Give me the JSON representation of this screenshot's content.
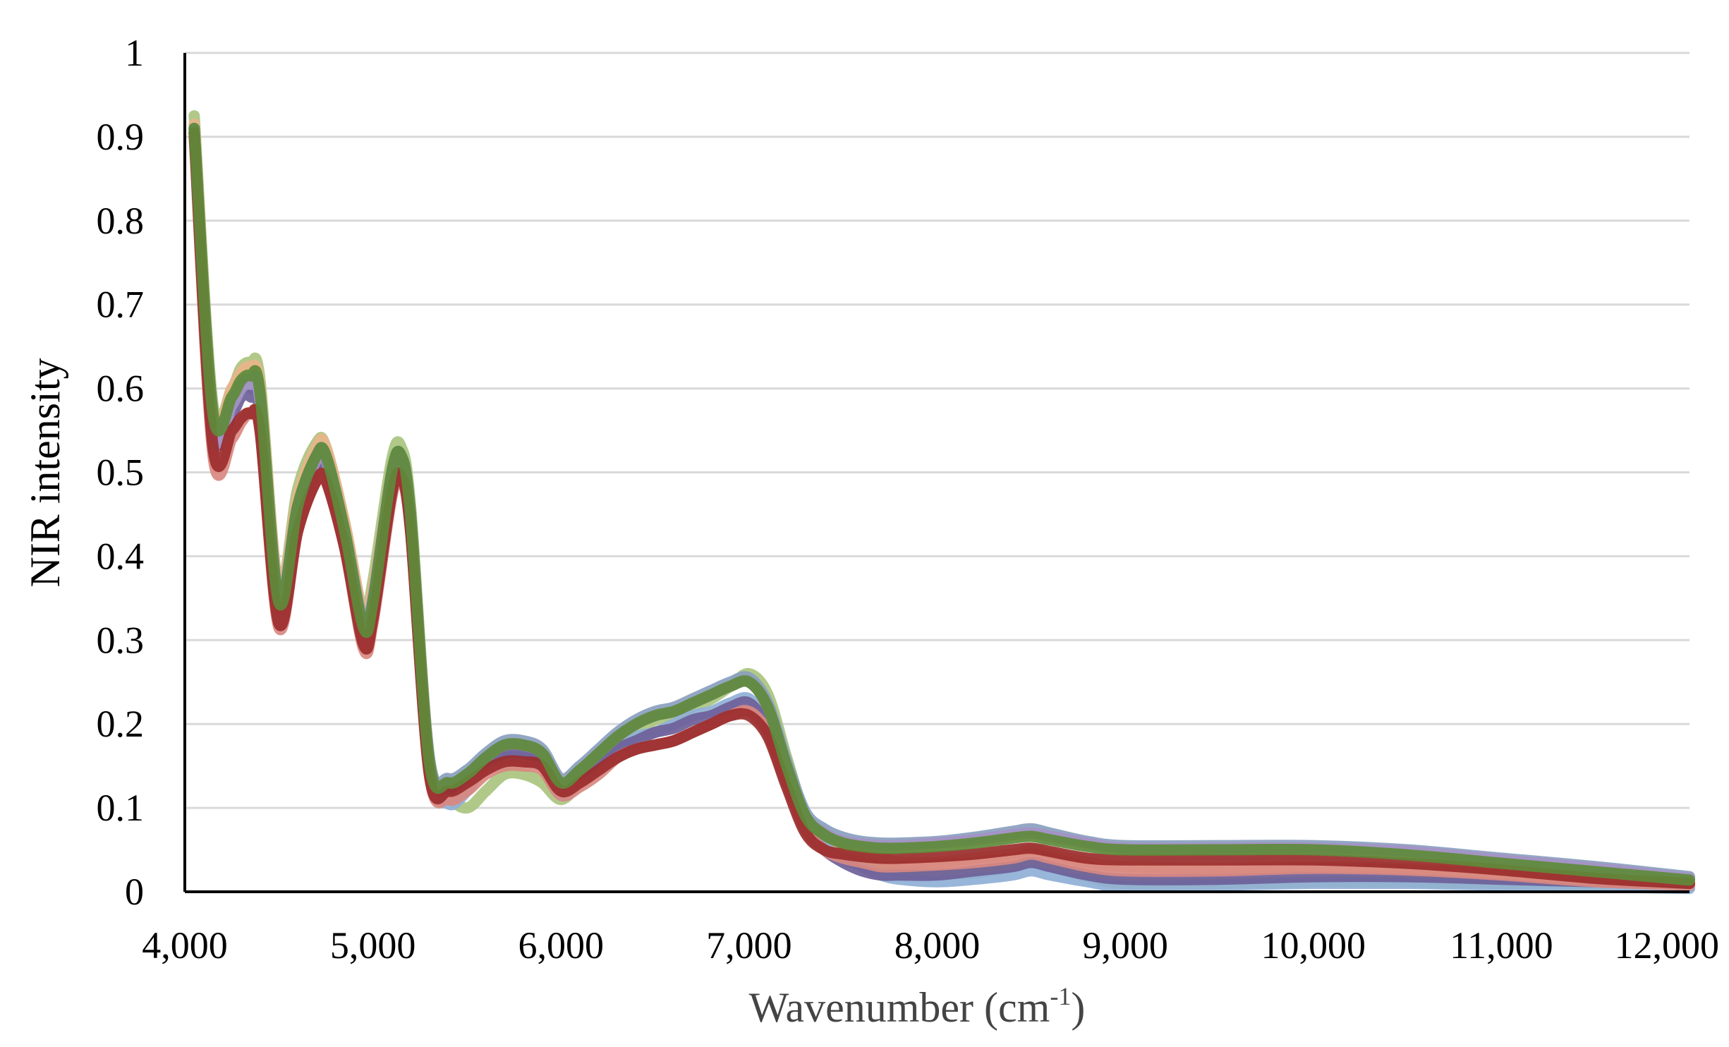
{
  "chart_data": {
    "type": "line",
    "title": "",
    "xlabel": "Wavenumber (cm",
    "xlabel_sup": "-1",
    "xlabel_end": ")",
    "ylabel": "NIR intensity",
    "xlim": [
      4000,
      12000
    ],
    "ylim": [
      0,
      1
    ],
    "grid": "horizontal",
    "legend": "none",
    "x_ticks": [
      4000,
      5000,
      6000,
      7000,
      8000,
      9000,
      10000,
      11000,
      12000
    ],
    "x_tick_labels": [
      "4,000",
      "5,000",
      "6,000",
      "7,000",
      "8,000",
      "9,000",
      "10,000",
      "11,000",
      "12,000"
    ],
    "y_ticks": [
      0,
      0.1,
      0.2,
      0.3,
      0.4,
      0.5,
      0.6,
      0.7,
      0.8,
      0.9,
      1
    ],
    "y_tick_labels": [
      "0",
      "0.1",
      "0.2",
      "0.3",
      "0.4",
      "0.5",
      "0.6",
      "0.7",
      "0.8",
      "0.9",
      "1"
    ],
    "x": [
      4050,
      4150,
      4250,
      4300,
      4350,
      4400,
      4500,
      4600,
      4700,
      4750,
      4850,
      4950,
      5000,
      5100,
      5150,
      5200,
      5300,
      5400,
      5500,
      5600,
      5700,
      5800,
      5900,
      6000,
      6100,
      6200,
      6300,
      6400,
      6500,
      6600,
      6700,
      6800,
      6900,
      7000,
      7100,
      7200,
      7300,
      7400,
      7500,
      7600,
      7700,
      7800,
      8000,
      8200,
      8400,
      8500,
      8600,
      8800,
      9000,
      9500,
      10000,
      10500,
      11000,
      11500,
      12000
    ],
    "series": [
      {
        "color": "#a9c47f",
        "values": [
          0.925,
          0.58,
          0.6,
          0.625,
          0.63,
          0.61,
          0.36,
          0.48,
          0.535,
          0.53,
          0.44,
          0.33,
          0.37,
          0.515,
          0.53,
          0.46,
          0.16,
          0.115,
          0.1,
          0.12,
          0.14,
          0.14,
          0.13,
          0.11,
          0.13,
          0.15,
          0.17,
          0.19,
          0.205,
          0.21,
          0.22,
          0.23,
          0.245,
          0.26,
          0.235,
          0.16,
          0.09,
          0.065,
          0.05,
          0.04,
          0.03,
          0.025,
          0.022,
          0.022,
          0.03,
          0.035,
          0.03,
          0.018,
          0.01,
          0.01,
          0.012,
          0.012,
          0.01,
          0.008,
          0.006
        ]
      },
      {
        "color": "#8fb0d6",
        "values": [
          0.91,
          0.56,
          0.58,
          0.6,
          0.6,
          0.58,
          0.34,
          0.45,
          0.51,
          0.51,
          0.43,
          0.32,
          0.35,
          0.49,
          0.51,
          0.44,
          0.15,
          0.105,
          0.12,
          0.15,
          0.16,
          0.16,
          0.15,
          0.115,
          0.13,
          0.15,
          0.17,
          0.185,
          0.19,
          0.2,
          0.21,
          0.215,
          0.225,
          0.23,
          0.2,
          0.14,
          0.08,
          0.055,
          0.04,
          0.03,
          0.02,
          0.015,
          0.012,
          0.015,
          0.02,
          0.025,
          0.02,
          0.012,
          0.006,
          0.008,
          0.01,
          0.01,
          0.008,
          0.006,
          0.004
        ]
      },
      {
        "color": "#6e5f99",
        "values": [
          0.905,
          0.555,
          0.57,
          0.59,
          0.59,
          0.57,
          0.335,
          0.445,
          0.5,
          0.5,
          0.425,
          0.315,
          0.345,
          0.48,
          0.5,
          0.435,
          0.155,
          0.12,
          0.13,
          0.15,
          0.165,
          0.165,
          0.155,
          0.12,
          0.135,
          0.15,
          0.17,
          0.18,
          0.19,
          0.195,
          0.205,
          0.21,
          0.22,
          0.225,
          0.195,
          0.135,
          0.075,
          0.05,
          0.035,
          0.025,
          0.02,
          0.02,
          0.02,
          0.025,
          0.03,
          0.035,
          0.03,
          0.02,
          0.015,
          0.015,
          0.018,
          0.018,
          0.015,
          0.012,
          0.01
        ]
      },
      {
        "color": "#e8b48a",
        "values": [
          0.915,
          0.57,
          0.6,
          0.62,
          0.625,
          0.6,
          0.36,
          0.47,
          0.53,
          0.53,
          0.44,
          0.33,
          0.36,
          0.5,
          0.52,
          0.45,
          0.16,
          0.13,
          0.14,
          0.16,
          0.175,
          0.175,
          0.165,
          0.13,
          0.145,
          0.165,
          0.185,
          0.2,
          0.21,
          0.215,
          0.225,
          0.235,
          0.245,
          0.25,
          0.22,
          0.15,
          0.09,
          0.07,
          0.055,
          0.045,
          0.04,
          0.035,
          0.035,
          0.04,
          0.045,
          0.05,
          0.045,
          0.035,
          0.03,
          0.028,
          0.03,
          0.028,
          0.022,
          0.015,
          0.01
        ]
      },
      {
        "color": "#d98880",
        "values": [
          0.9,
          0.52,
          0.54,
          0.56,
          0.57,
          0.55,
          0.315,
          0.43,
          0.49,
          0.49,
          0.41,
          0.29,
          0.32,
          0.47,
          0.49,
          0.43,
          0.14,
          0.11,
          0.12,
          0.14,
          0.15,
          0.15,
          0.145,
          0.115,
          0.125,
          0.14,
          0.16,
          0.17,
          0.175,
          0.18,
          0.19,
          0.2,
          0.21,
          0.215,
          0.19,
          0.13,
          0.075,
          0.05,
          0.04,
          0.035,
          0.03,
          0.03,
          0.032,
          0.035,
          0.04,
          0.045,
          0.04,
          0.03,
          0.025,
          0.025,
          0.028,
          0.026,
          0.02,
          0.012,
          0.008
        ]
      },
      {
        "color": "#8a9fbf",
        "values": [
          0.91,
          0.56,
          0.585,
          0.605,
          0.61,
          0.59,
          0.35,
          0.46,
          0.52,
          0.52,
          0.43,
          0.32,
          0.35,
          0.5,
          0.52,
          0.45,
          0.16,
          0.135,
          0.145,
          0.165,
          0.18,
          0.18,
          0.17,
          0.135,
          0.15,
          0.17,
          0.19,
          0.205,
          0.215,
          0.22,
          0.23,
          0.24,
          0.25,
          0.255,
          0.225,
          0.155,
          0.095,
          0.075,
          0.065,
          0.06,
          0.058,
          0.058,
          0.06,
          0.065,
          0.072,
          0.075,
          0.07,
          0.06,
          0.055,
          0.055,
          0.055,
          0.05,
          0.04,
          0.03,
          0.018
        ]
      },
      {
        "color": "#a493c4",
        "values": [
          0.905,
          0.555,
          0.58,
          0.6,
          0.605,
          0.585,
          0.345,
          0.455,
          0.515,
          0.515,
          0.425,
          0.315,
          0.345,
          0.495,
          0.515,
          0.445,
          0.155,
          0.13,
          0.14,
          0.16,
          0.175,
          0.175,
          0.165,
          0.13,
          0.145,
          0.165,
          0.185,
          0.2,
          0.21,
          0.215,
          0.225,
          0.235,
          0.245,
          0.25,
          0.22,
          0.15,
          0.09,
          0.07,
          0.06,
          0.057,
          0.055,
          0.055,
          0.058,
          0.062,
          0.068,
          0.07,
          0.066,
          0.058,
          0.052,
          0.052,
          0.052,
          0.048,
          0.038,
          0.028,
          0.016
        ]
      },
      {
        "color": "#9b2c2c",
        "values": [
          0.905,
          0.53,
          0.55,
          0.565,
          0.57,
          0.55,
          0.32,
          0.43,
          0.49,
          0.49,
          0.41,
          0.295,
          0.325,
          0.475,
          0.495,
          0.43,
          0.14,
          0.12,
          0.13,
          0.145,
          0.155,
          0.155,
          0.15,
          0.12,
          0.13,
          0.145,
          0.16,
          0.17,
          0.175,
          0.18,
          0.19,
          0.2,
          0.21,
          0.21,
          0.185,
          0.125,
          0.07,
          0.05,
          0.045,
          0.042,
          0.04,
          0.04,
          0.042,
          0.045,
          0.05,
          0.052,
          0.048,
          0.04,
          0.038,
          0.038,
          0.038,
          0.034,
          0.026,
          0.016,
          0.01
        ]
      },
      {
        "color": "#5e8a3a",
        "values": [
          0.91,
          0.57,
          0.59,
          0.61,
          0.615,
          0.595,
          0.345,
          0.46,
          0.52,
          0.52,
          0.43,
          0.315,
          0.345,
          0.5,
          0.52,
          0.45,
          0.155,
          0.13,
          0.14,
          0.16,
          0.175,
          0.175,
          0.165,
          0.13,
          0.145,
          0.165,
          0.185,
          0.2,
          0.21,
          0.215,
          0.225,
          0.235,
          0.245,
          0.25,
          0.22,
          0.15,
          0.09,
          0.068,
          0.058,
          0.054,
          0.052,
          0.052,
          0.054,
          0.058,
          0.064,
          0.066,
          0.062,
          0.054,
          0.05,
          0.05,
          0.05,
          0.044,
          0.034,
          0.024,
          0.014
        ]
      }
    ]
  }
}
